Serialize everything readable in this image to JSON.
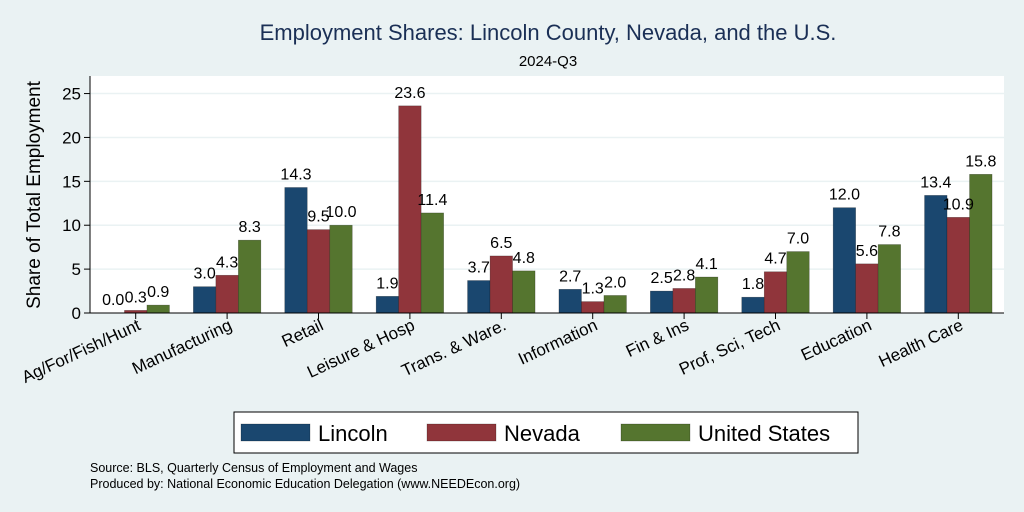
{
  "chart_data": {
    "type": "bar",
    "title": "Employment Shares: Lincoln County, Nevada, and the U.S.",
    "subtitle": "2024-Q3",
    "ylabel": "Share of Total Employment",
    "xlabel": "",
    "ylim": [
      0,
      27
    ],
    "yticks": [
      0,
      5,
      10,
      15,
      20,
      25
    ],
    "grid": true,
    "legend_position": "bottom",
    "categories": [
      "Ag/For/Fish/Hunt",
      "Manufacturing",
      "Retail",
      "Leisure & Hosp",
      "Trans. & Ware.",
      "Information",
      "Fin & Ins",
      "Prof, Sci, Tech",
      "Education",
      "Health Care"
    ],
    "series": [
      {
        "name": "Lincoln",
        "color": "#1a476f",
        "values": [
          0.0,
          3.0,
          14.3,
          1.9,
          3.7,
          2.7,
          2.5,
          1.8,
          12.0,
          13.4
        ]
      },
      {
        "name": "Nevada",
        "color": "#90353b",
        "values": [
          0.3,
          4.3,
          9.5,
          23.6,
          6.5,
          1.3,
          2.8,
          4.7,
          5.6,
          10.9
        ]
      },
      {
        "name": "United States",
        "color": "#55752f",
        "values": [
          0.9,
          8.3,
          10.0,
          11.4,
          4.8,
          2.0,
          4.1,
          7.0,
          7.8,
          15.8
        ]
      }
    ]
  },
  "notes": {
    "source": "Source: BLS, Quarterly Census of Employment and Wages",
    "produced": "Produced by: National Economic Education Delegation (www.NEEDEcon.org)"
  }
}
